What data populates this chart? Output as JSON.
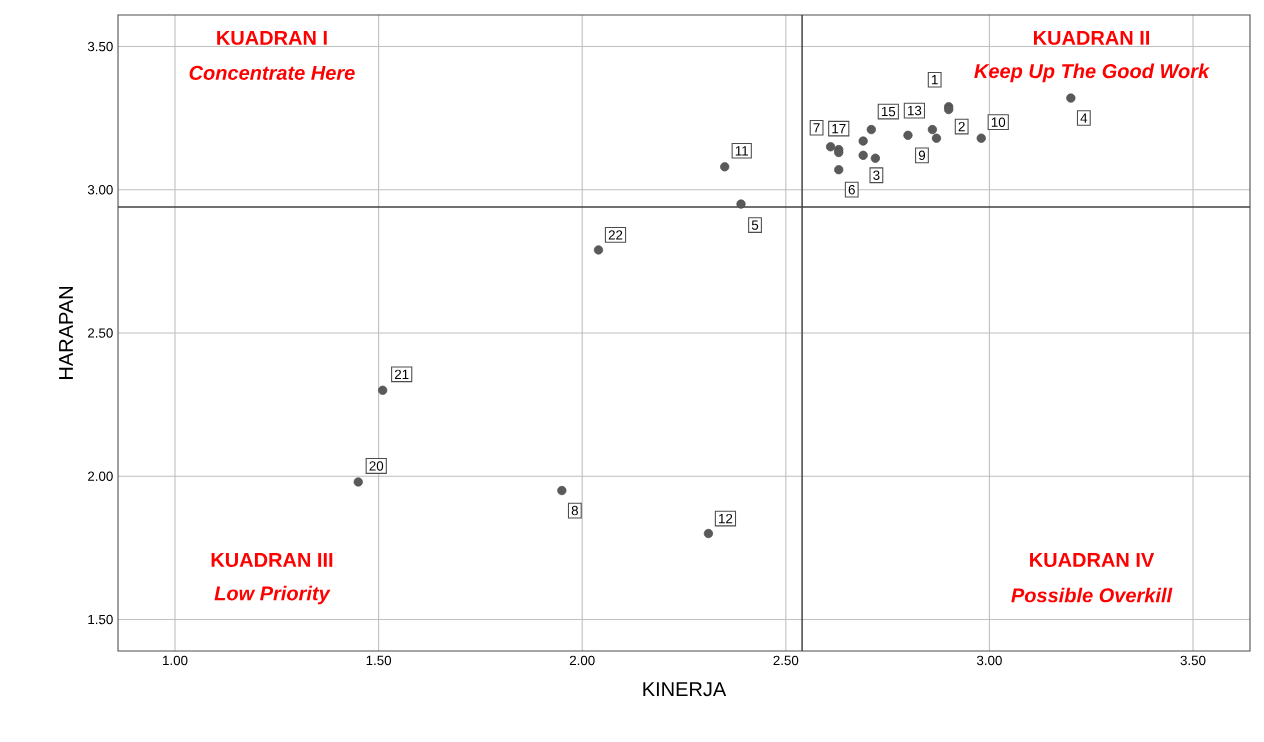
{
  "chart_data": {
    "type": "scatter",
    "xlabel": "KINERJA",
    "ylabel": "HARAPAN",
    "x": [
      2.9,
      2.9,
      2.86,
      2.87,
      2.8,
      2.71,
      2.69,
      2.69,
      2.72,
      2.63,
      2.61,
      2.63,
      2.63,
      2.98,
      3.2,
      2.35,
      2.39,
      2.04,
      1.51,
      1.45,
      1.95,
      2.31
    ],
    "series": [
      {
        "color": "#5a5a5a",
        "values": [
          3.29,
          3.28,
          3.21,
          3.18,
          3.19,
          3.21,
          3.17,
          3.12,
          3.11,
          3.07,
          3.15,
          3.14,
          3.13,
          3.18,
          3.32,
          3.08,
          2.95,
          2.79,
          2.3,
          1.98,
          1.95,
          1.8
        ]
      }
    ],
    "xlim": [
      0.86,
      3.64
    ],
    "ylim": [
      1.39,
      3.61
    ],
    "xticks": [
      {
        "value": 1,
        "label": "1.00"
      },
      {
        "value": 1.5,
        "label": "1.50"
      },
      {
        "value": 2,
        "label": "2.00"
      },
      {
        "value": 2.5,
        "label": "2.50"
      },
      {
        "value": 3,
        "label": "3.00"
      },
      {
        "value": 3.5,
        "label": "3.50"
      }
    ],
    "yticks": [
      {
        "value": 1.5,
        "label": "1.50"
      },
      {
        "value": 2,
        "label": "2.00"
      },
      {
        "value": 2.5,
        "label": "2.50"
      },
      {
        "value": 3,
        "label": "3.00"
      },
      {
        "value": 3.5,
        "label": "3.50"
      }
    ],
    "grid": true,
    "marker": "circle",
    "ref_lines": [
      {
        "axis": "x",
        "value": 2.54,
        "color": "#404040"
      },
      {
        "axis": "y",
        "value": 2.94,
        "color": "#404040"
      }
    ],
    "annotations": [
      "KUADRAN I",
      "Concentrate Here",
      "KUADRAN II",
      "Keep Up The Good Work",
      "KUADRAN III",
      "Low Priority",
      "KUADRAN IV",
      "Possible Overkill",
      {
        "text": "1",
        "x": 2.9,
        "y": 3.29
      },
      {
        "text": "2",
        "x": 2.9,
        "y": 3.28
      },
      {
        "text": "13",
        "x": 2.86,
        "y": 3.21
      },
      {
        "text": "9",
        "x": 2.8,
        "y": 3.19
      },
      {
        "text": "15",
        "x": 2.71,
        "y": 3.21
      },
      {
        "text": "3",
        "x": 2.72,
        "y": 3.11
      },
      {
        "text": "6",
        "x": 2.63,
        "y": 3.07
      },
      {
        "text": "7",
        "x": 2.61,
        "y": 3.15
      },
      {
        "text": "17",
        "x": 2.63,
        "y": 3.14
      },
      {
        "text": "10",
        "x": 2.98,
        "y": 3.18
      },
      {
        "text": "4",
        "x": 3.2,
        "y": 3.32
      },
      {
        "text": "11",
        "x": 2.35,
        "y": 3.08
      },
      {
        "text": "5",
        "x": 2.39,
        "y": 2.95
      },
      {
        "text": "22",
        "x": 2.04,
        "y": 2.79
      },
      {
        "text": "21",
        "x": 1.51,
        "y": 2.3
      },
      {
        "text": "20",
        "x": 1.45,
        "y": 1.98
      },
      {
        "text": "8",
        "x": 1.95,
        "y": 1.95
      },
      {
        "text": "12",
        "x": 2.31,
        "y": 1.8
      }
    ]
  }
}
